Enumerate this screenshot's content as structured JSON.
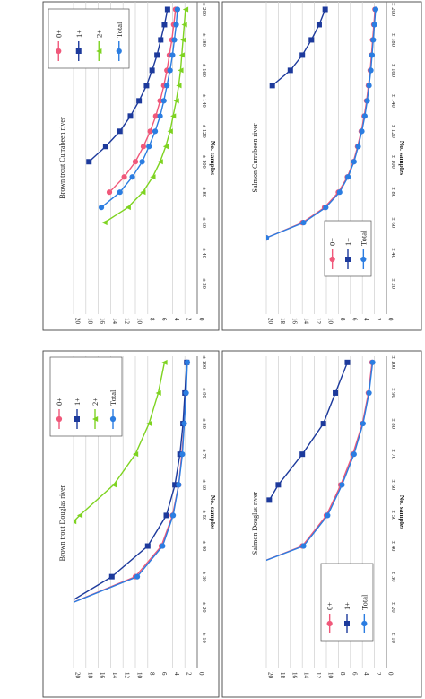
{
  "chart_data": [
    {
      "type": "line",
      "title": "Brown trout Currabeen river",
      "ylabel": "No. samples",
      "xlabel": "",
      "xlim": [
        0,
        205
      ],
      "ylim": [
        0,
        20
      ],
      "x_ticks": [
        20,
        40,
        60,
        80,
        100,
        120,
        140,
        160,
        180,
        200
      ],
      "x_tick_labels": [
        "± 20",
        "± 40",
        "± 60",
        "± 80",
        "± 100",
        "± 120",
        "± 140",
        "± 160",
        "± 180",
        "± 200"
      ],
      "y_ticks": [
        0,
        2,
        4,
        6,
        8,
        10,
        12,
        14,
        16,
        18,
        20
      ],
      "y_tick_labels": [
        "0",
        "2",
        "4",
        "6",
        "8",
        "10",
        "12",
        "14",
        "16",
        "18",
        "20"
      ],
      "legend": [
        "0+",
        "1+",
        "2+",
        "Total"
      ],
      "legend_position": "top-left",
      "series": [
        {
          "name": "0+",
          "color": "#f0587a",
          "marker": "circle",
          "x": [
            80,
            90,
            100,
            110,
            120,
            130,
            140,
            150,
            160,
            170,
            180,
            190,
            200
          ],
          "y": [
            14.2,
            11.8,
            10.0,
            8.7,
            7.6,
            6.7,
            6.0,
            5.4,
            4.9,
            4.5,
            4.1,
            3.8,
            3.5
          ]
        },
        {
          "name": "1+",
          "color": "#1d3a9c",
          "marker": "square",
          "x": [
            100,
            110,
            120,
            130,
            140,
            150,
            160,
            170,
            180,
            190,
            200
          ],
          "y": [
            17.5,
            14.8,
            12.5,
            10.8,
            9.4,
            8.2,
            7.3,
            6.5,
            5.9,
            5.3,
            4.8
          ]
        },
        {
          "name": "2+",
          "color": "#7ed321",
          "marker": "triangle",
          "x": [
            60,
            70,
            80,
            90,
            100,
            110,
            120,
            130,
            140,
            150,
            160,
            170,
            180,
            190,
            200
          ],
          "y": [
            15.0,
            11.2,
            8.8,
            7.2,
            6.0,
            5.1,
            4.4,
            3.9,
            3.4,
            3.0,
            2.7,
            2.5,
            2.3,
            2.1,
            1.9
          ]
        },
        {
          "name": "Total",
          "color": "#2b7de1",
          "marker": "circle",
          "x": [
            70,
            80,
            90,
            100,
            110,
            120,
            130,
            140,
            150,
            160,
            170,
            180,
            190,
            200
          ],
          "y": [
            15.5,
            12.5,
            10.5,
            8.9,
            7.8,
            6.8,
            6.0,
            5.4,
            4.9,
            4.4,
            4.0,
            3.7,
            3.4,
            3.2
          ]
        }
      ]
    },
    {
      "type": "line",
      "title": "Salmon Currabeen river",
      "ylabel": "No. samples",
      "xlabel": "",
      "xlim": [
        0,
        205
      ],
      "ylim": [
        0,
        20
      ],
      "x_ticks": [
        20,
        40,
        60,
        80,
        100,
        120,
        140,
        160,
        180,
        200
      ],
      "x_tick_labels": [
        "± 20",
        "± 40",
        "± 60",
        "± 80",
        "± 100",
        "± 120",
        "± 140",
        "± 160",
        "± 180",
        "± 200"
      ],
      "y_ticks": [
        0,
        2,
        4,
        6,
        8,
        10,
        12,
        14,
        16,
        18,
        20
      ],
      "y_tick_labels": [
        "0",
        "2",
        "4",
        "6",
        "8",
        "10",
        "12",
        "14",
        "16",
        "18",
        "20"
      ],
      "legend": [
        "0+",
        "1+",
        "Total"
      ],
      "legend_position": "bottom-left",
      "series": [
        {
          "name": "0+",
          "color": "#f0587a",
          "marker": "circle",
          "x": [
            50,
            60,
            70,
            80,
            90,
            100,
            110,
            120,
            130,
            140,
            150,
            160,
            170,
            180,
            190,
            200
          ],
          "y": [
            20.0,
            14.0,
            10.3,
            8.0,
            6.5,
            5.5,
            4.8,
            4.2,
            3.7,
            3.3,
            3.0,
            2.7,
            2.5,
            2.3,
            2.1,
            1.9
          ]
        },
        {
          "name": "1+",
          "color": "#1d3a9c",
          "marker": "square",
          "x": [
            150,
            160,
            170,
            180,
            190,
            200
          ],
          "y": [
            19.0,
            16.0,
            14.0,
            12.5,
            11.2,
            10.2
          ]
        },
        {
          "name": "Total",
          "color": "#2b7de1",
          "marker": "circle",
          "x": [
            50,
            60,
            70,
            80,
            90,
            100,
            110,
            120,
            130,
            140,
            150,
            160,
            170,
            180,
            190,
            200
          ],
          "y": [
            20.0,
            13.8,
            10.1,
            7.8,
            6.4,
            5.4,
            4.7,
            4.1,
            3.6,
            3.2,
            2.9,
            2.6,
            2.4,
            2.2,
            2.0,
            1.8
          ]
        }
      ]
    },
    {
      "type": "line",
      "title": "Brown trout Douglas river",
      "ylabel": "No. samples",
      "xlabel": "",
      "xlim": [
        0,
        102
      ],
      "ylim": [
        0,
        20
      ],
      "x_ticks": [
        10,
        20,
        30,
        40,
        50,
        60,
        70,
        80,
        90,
        100
      ],
      "x_tick_labels": [
        "± 10",
        "± 20",
        "± 30",
        "± 40",
        "± 50",
        "± 60",
        "± 70",
        "± 80",
        "± 90",
        "± 100"
      ],
      "y_ticks": [
        0,
        2,
        4,
        6,
        8,
        10,
        12,
        14,
        16,
        18,
        20
      ],
      "y_tick_labels": [
        "0",
        "2",
        "4",
        "6",
        "8",
        "10",
        "12",
        "14",
        "16",
        "18",
        "20"
      ],
      "legend": [
        "0+",
        "1+",
        "2+",
        "Total"
      ],
      "legend_position": "top-right",
      "series": [
        {
          "name": "0+",
          "color": "#f0587a",
          "marker": "circle",
          "x": [
            20,
            30,
            40,
            50,
            60,
            70,
            80,
            90,
            100
          ],
          "y": [
            22,
            10.0,
            5.8,
            4.0,
            3.0,
            2.5,
            2.1,
            1.9,
            1.7
          ]
        },
        {
          "name": "1+",
          "color": "#1d3a9c",
          "marker": "square",
          "x": [
            20,
            30,
            40,
            50,
            60,
            70,
            80,
            90,
            100
          ],
          "y": [
            22,
            13.8,
            8.0,
            5.0,
            3.6,
            2.8,
            2.3,
            2.0,
            1.7
          ]
        },
        {
          "name": "2+",
          "color": "#7ed321",
          "marker": "triangle",
          "x": [
            48,
            50,
            60,
            70,
            80,
            90,
            100
          ],
          "y": [
            20,
            19.0,
            13.5,
            10.0,
            7.8,
            6.3,
            5.3
          ]
        },
        {
          "name": "Total",
          "color": "#2b7de1",
          "marker": "circle",
          "x": [
            20,
            30,
            40,
            50,
            60,
            70,
            80,
            90,
            100
          ],
          "y": [
            22,
            9.7,
            5.6,
            3.9,
            3.0,
            2.4,
            2.1,
            1.8,
            1.6
          ]
        }
      ]
    },
    {
      "type": "line",
      "title": "Salmon Douglas river",
      "ylabel": "No. samples",
      "xlabel": "",
      "xlim": [
        0,
        102
      ],
      "ylim": [
        0,
        20
      ],
      "x_ticks": [
        10,
        20,
        30,
        40,
        50,
        60,
        70,
        80,
        90,
        100
      ],
      "x_tick_labels": [
        "± 10",
        "± 20",
        "± 30",
        "± 40",
        "± 50",
        "± 60",
        "± 70",
        "± 80",
        "± 90",
        "± 100"
      ],
      "y_ticks": [
        0,
        2,
        4,
        6,
        8,
        10,
        12,
        14,
        16,
        18,
        20
      ],
      "y_tick_labels": [
        "0",
        "2",
        "4",
        "6",
        "8",
        "10",
        "12",
        "14",
        "16",
        "18",
        "20"
      ],
      "legend": [
        "0+",
        "1+",
        "Total"
      ],
      "legend_position": "bottom-right",
      "series": [
        {
          "name": "0+",
          "color": "#f0587a",
          "marker": "circle",
          "x": [
            35,
            40,
            50,
            60,
            70,
            80,
            90,
            100
          ],
          "y": [
            20.5,
            14.0,
            10.0,
            7.6,
            5.6,
            4.0,
            3.0,
            2.4
          ]
        },
        {
          "name": "1+",
          "color": "#1d3a9c",
          "marker": "square",
          "x": [
            55,
            60,
            70,
            80,
            90,
            100
          ],
          "y": [
            19.5,
            18.0,
            14.0,
            10.5,
            8.5,
            6.5
          ]
        },
        {
          "name": "Total",
          "color": "#2b7de1",
          "marker": "circle",
          "x": [
            35,
            40,
            50,
            60,
            70,
            80,
            90,
            100
          ],
          "y": [
            20.5,
            13.8,
            9.8,
            7.4,
            5.4,
            3.9,
            2.9,
            2.3
          ]
        }
      ]
    }
  ]
}
